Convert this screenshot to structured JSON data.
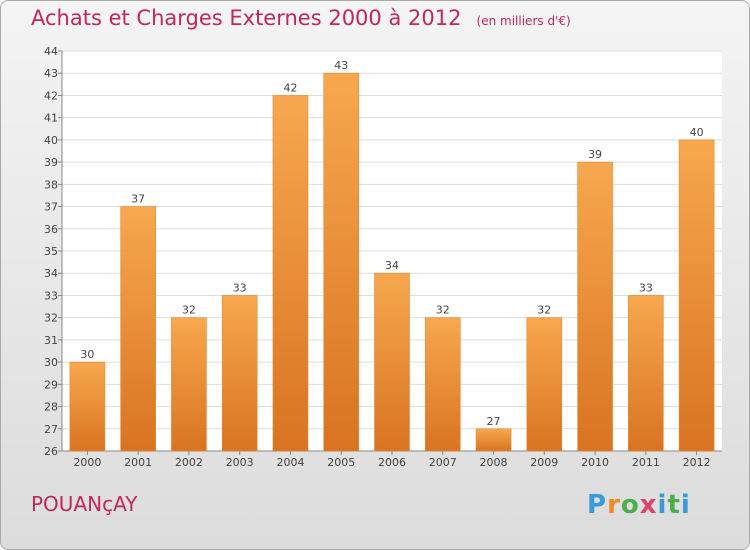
{
  "header": {
    "title": "Achats et Charges Externes 2000 à 2012",
    "subtitle": "(en milliers d'€)"
  },
  "footer": {
    "commune": "POUANçAY",
    "logo": "Proxiti",
    "logo_letters": [
      "P",
      "r",
      "o",
      "x",
      "i",
      "t",
      "i"
    ]
  },
  "colors": {
    "bar_top": "#f7a84f",
    "bar_bottom": "#d97322",
    "bar_edge": "#e48a34",
    "title": "#c0275d"
  },
  "chart_data": {
    "type": "bar",
    "categories": [
      "2000",
      "2001",
      "2002",
      "2003",
      "2004",
      "2005",
      "2006",
      "2007",
      "2008",
      "2009",
      "2010",
      "2011",
      "2012"
    ],
    "values": [
      30,
      37,
      32,
      33,
      42,
      43,
      34,
      32,
      27,
      32,
      39,
      33,
      40
    ],
    "ylim": [
      26,
      44
    ],
    "yticks": [
      26,
      27,
      28,
      29,
      30,
      31,
      32,
      33,
      34,
      35,
      36,
      37,
      38,
      39,
      40,
      41,
      42,
      43,
      44
    ],
    "grid": true,
    "data_labels": true
  }
}
